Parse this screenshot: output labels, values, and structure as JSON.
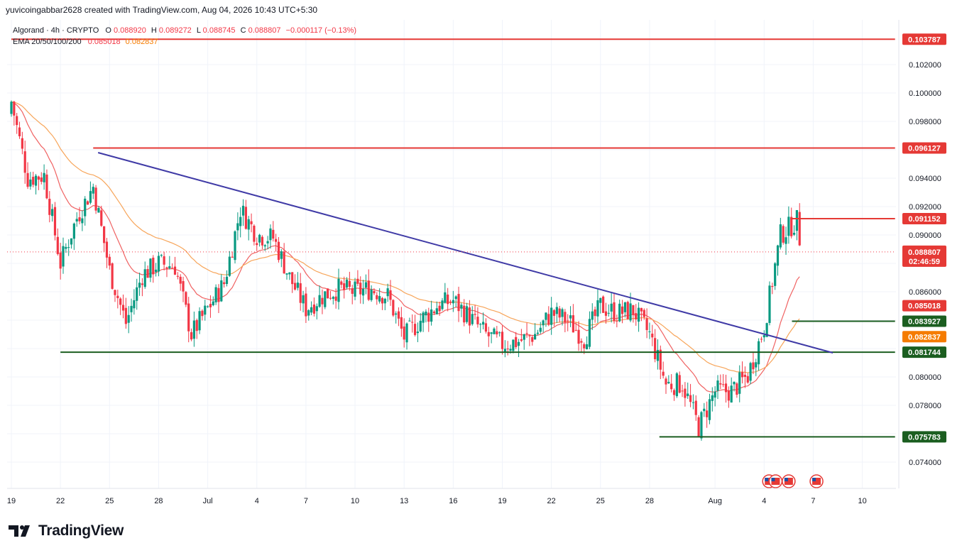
{
  "header": {
    "created_by": "yuvicoingabbar2628 created with TradingView.com, Aug 04, 2026 10:43 UTC+5:30"
  },
  "legend": {
    "symbol": "Algorand · 4h · CRYPTO",
    "o_label": "O",
    "o_value": "0.088920",
    "h_label": "H",
    "h_value": "0.089272",
    "l_label": "L",
    "l_value": "0.088745",
    "c_label": "C",
    "c_value": "0.088807",
    "change": "−0.000117 (−0.13%)",
    "ema_label": "EMA 20/50/100/200",
    "ema_fast": "0.085018",
    "ema_slow": "0.082837"
  },
  "colors": {
    "up": "#089981",
    "down": "#f23645",
    "resistance": "#e53935",
    "support": "#1b5e20",
    "trendline": "#3f3aa6",
    "ema_fast": "#f06262",
    "ema_slow": "#f7a55a",
    "tag_green": "#1b5e20",
    "tag_orange": "#f57c00",
    "tag_red": "#e53935",
    "grid": "#f0f3fa"
  },
  "chart_data": {
    "type": "candlestick",
    "interval": "4h",
    "ylim": [
      0.0728,
      0.1042
    ],
    "yticks": [
      "0.074000",
      "0.076000",
      "0.078000",
      "0.080000",
      "0.082000",
      "0.084000",
      "0.086000",
      "0.088000",
      "0.090000",
      "0.092000",
      "0.094000",
      "0.096000",
      "0.098000",
      "0.100000",
      "0.102000"
    ],
    "hidden_yticks": [
      "0.076000",
      "0.082000",
      "0.084000",
      "0.088000",
      "0.096000"
    ],
    "xticks": [
      {
        "label": "19",
        "day": 0
      },
      {
        "label": "22",
        "day": 3
      },
      {
        "label": "25",
        "day": 6
      },
      {
        "label": "28",
        "day": 9
      },
      {
        "label": "Jul",
        "day": 12
      },
      {
        "label": "4",
        "day": 15
      },
      {
        "label": "7",
        "day": 18
      },
      {
        "label": "10",
        "day": 21
      },
      {
        "label": "13",
        "day": 24
      },
      {
        "label": "16",
        "day": 27
      },
      {
        "label": "19",
        "day": 30
      },
      {
        "label": "22",
        "day": 33
      },
      {
        "label": "25",
        "day": 36
      },
      {
        "label": "28",
        "day": 39
      },
      {
        "label": "Aug",
        "day": 43
      },
      {
        "label": "4",
        "day": 46
      },
      {
        "label": "7",
        "day": 49
      },
      {
        "label": "10",
        "day": 52
      }
    ],
    "anchor_closes": [
      [
        0,
        0.0994
      ],
      [
        1,
        0.094
      ],
      [
        2,
        0.0942
      ],
      [
        3,
        0.088
      ],
      [
        4,
        0.0912
      ],
      [
        5,
        0.0934
      ],
      [
        6,
        0.0875
      ],
      [
        7,
        0.0838
      ],
      [
        8,
        0.0872
      ],
      [
        9,
        0.088
      ],
      [
        10,
        0.0878
      ],
      [
        11,
        0.083
      ],
      [
        12,
        0.0848
      ],
      [
        13,
        0.0866
      ],
      [
        14,
        0.0918
      ],
      [
        15,
        0.09
      ],
      [
        16,
        0.0898
      ],
      [
        17,
        0.087
      ],
      [
        18,
        0.0848
      ],
      [
        19,
        0.0857
      ],
      [
        20,
        0.0862
      ],
      [
        21,
        0.086
      ],
      [
        22,
        0.0862
      ],
      [
        23,
        0.0857
      ],
      [
        24,
        0.0828
      ],
      [
        25,
        0.084
      ],
      [
        26,
        0.085
      ],
      [
        27,
        0.0854
      ],
      [
        28,
        0.0842
      ],
      [
        29,
        0.083
      ],
      [
        30,
        0.0823
      ],
      [
        31,
        0.0825
      ],
      [
        32,
        0.083
      ],
      [
        33,
        0.0845
      ],
      [
        34,
        0.084
      ],
      [
        35,
        0.0827
      ],
      [
        36,
        0.085
      ],
      [
        37,
        0.0845
      ],
      [
        38,
        0.0847
      ],
      [
        39,
        0.083
      ],
      [
        40,
        0.0795
      ],
      [
        41,
        0.0795
      ],
      [
        42,
        0.0765
      ],
      [
        43,
        0.079
      ],
      [
        44,
        0.079
      ],
      [
        45,
        0.0801
      ],
      [
        46,
        0.0835
      ],
      [
        47,
        0.09
      ],
      [
        48,
        0.091
      ],
      [
        48.3,
        0.0888
      ]
    ],
    "horizontal_levels": [
      {
        "value": 0.103787,
        "label": "0.103787",
        "color": "resistance",
        "from_day": 0,
        "to_day": 54
      },
      {
        "value": 0.096127,
        "label": "0.096127",
        "color": "resistance",
        "from_day": 5,
        "to_day": 54
      },
      {
        "value": 0.091152,
        "label": "0.091152",
        "color": "resistance",
        "from_day": 47.6,
        "to_day": 54
      },
      {
        "value": 0.083927,
        "label": "0.083927",
        "color": "support",
        "from_day": 47.7,
        "to_day": 54
      },
      {
        "value": 0.081744,
        "label": "0.081744",
        "color": "support",
        "from_day": 3,
        "to_day": 54
      },
      {
        "value": 0.075783,
        "label": "0.075783",
        "color": "support",
        "from_day": 39.6,
        "to_day": 54
      }
    ],
    "trendline": {
      "from": {
        "day": 5.3,
        "value": 0.0958
      },
      "to": {
        "day": 50.2,
        "value": 0.0817
      }
    },
    "last_price": {
      "value": 0.088807,
      "label": "0.088807",
      "countdown": "02:46:59"
    },
    "price_tags": [
      {
        "value": 0.103787,
        "label": "0.103787",
        "color": "tag_red"
      },
      {
        "value": 0.096127,
        "label": "0.096127",
        "color": "tag_red"
      },
      {
        "value": 0.091152,
        "label": "0.091152",
        "color": "tag_red"
      },
      {
        "value": 0.085018,
        "label": "0.085018",
        "color": "tag_red"
      },
      {
        "value": 0.083927,
        "label": "0.083927",
        "color": "tag_green"
      },
      {
        "value": 0.082837,
        "label": "0.082837",
        "color": "tag_orange"
      },
      {
        "value": 0.081744,
        "label": "0.081744",
        "color": "tag_green"
      },
      {
        "value": 0.075783,
        "label": "0.075783",
        "color": "tag_green"
      }
    ],
    "events": [
      {
        "day": 46.3,
        "icon": "flag-icon"
      },
      {
        "day": 46.7,
        "icon": "flag-icon"
      },
      {
        "day": 47.5,
        "icon": "flag-icon"
      },
      {
        "day": 49.2,
        "icon": "flag-icon"
      }
    ]
  },
  "branding": {
    "logo_text": "TradingView"
  }
}
